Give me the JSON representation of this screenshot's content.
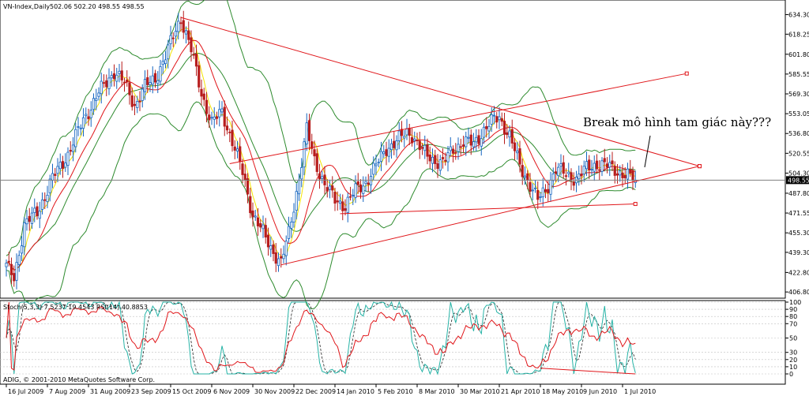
{
  "chart_data": {
    "type": "candlestick",
    "title": "VN-Index,Daily",
    "ohlc_readout": "502.06 502.20 498.55 498.55",
    "last_price_label": "498.55",
    "annotation": "Break mô hình tam giác này???",
    "copyright": "ADIG, © 2001-2010 MetaQuotes Software Corp.",
    "colors": {
      "bull": "#1565c0",
      "bear": "#b71c1c",
      "ma_fast": "#f4e400",
      "ma_slow": "#e0161a",
      "bands": "#2e8b2e",
      "trendline": "#e0161a",
      "stoch_main": "#26b3a6",
      "stoch_signal": "#222222",
      "rsi": "#e0161a"
    },
    "price_axis": {
      "ylim": [
        403,
        645
      ],
      "ticks": [
        "634.30",
        "618.25",
        "601.80",
        "585.55",
        "569.30",
        "553.05",
        "536.80",
        "520.55",
        "504.30",
        "487.80",
        "471.55",
        "455.30",
        "439.30",
        "422.80",
        "406.80"
      ]
    },
    "x_axis": {
      "labels": [
        "16 Jul 2009",
        "7 Aug 2009",
        "31 Aug 2009",
        "23 Sep 2009",
        "15 Oct 2009",
        "6 Nov 2009",
        "30 Nov 2009",
        "22 Dec 2009",
        "14 Jan 2010",
        "5 Feb 2010",
        "8 Mar 2010",
        "30 Mar 2010",
        "21 Apr 2010",
        "18 May 2010",
        "9 Jun 2010",
        "1 Jul 2010"
      ],
      "label_bars": [
        0,
        16,
        32,
        48,
        64,
        80,
        96,
        112,
        128,
        144,
        160,
        176,
        192,
        208,
        224,
        240
      ]
    },
    "price_anchors": [
      [
        0,
        428
      ],
      [
        3,
        418
      ],
      [
        7,
        462
      ],
      [
        12,
        472
      ],
      [
        18,
        500
      ],
      [
        24,
        520
      ],
      [
        30,
        548
      ],
      [
        36,
        570
      ],
      [
        42,
        588
      ],
      [
        46,
        578
      ],
      [
        50,
        560
      ],
      [
        54,
        575
      ],
      [
        58,
        582
      ],
      [
        62,
        600
      ],
      [
        66,
        622
      ],
      [
        68,
        632
      ],
      [
        72,
        605
      ],
      [
        76,
        570
      ],
      [
        80,
        545
      ],
      [
        84,
        555
      ],
      [
        88,
        530
      ],
      [
        92,
        505
      ],
      [
        96,
        470
      ],
      [
        100,
        455
      ],
      [
        104,
        440
      ],
      [
        107,
        430
      ],
      [
        110,
        455
      ],
      [
        114,
        500
      ],
      [
        117,
        540
      ],
      [
        120,
        515
      ],
      [
        124,
        495
      ],
      [
        128,
        482
      ],
      [
        132,
        478
      ],
      [
        136,
        490
      ],
      [
        140,
        497
      ],
      [
        144,
        510
      ],
      [
        148,
        525
      ],
      [
        152,
        530
      ],
      [
        156,
        538
      ],
      [
        158,
        536
      ],
      [
        162,
        522
      ],
      [
        166,
        516
      ],
      [
        170,
        512
      ],
      [
        174,
        524
      ],
      [
        178,
        530
      ],
      [
        182,
        528
      ],
      [
        186,
        540
      ],
      [
        190,
        548
      ],
      [
        192,
        550
      ],
      [
        196,
        535
      ],
      [
        200,
        510
      ],
      [
        204,
        495
      ],
      [
        207,
        482
      ],
      [
        210,
        490
      ],
      [
        214,
        508
      ],
      [
        218,
        503
      ],
      [
        222,
        500
      ],
      [
        226,
        508
      ],
      [
        230,
        512
      ],
      [
        234,
        510
      ],
      [
        238,
        506
      ],
      [
        242,
        502
      ],
      [
        245,
        498.55
      ]
    ],
    "trendlines": [
      {
        "name": "upper",
        "from": [
          68,
          632
        ],
        "to": [
          270,
          510
        ]
      },
      {
        "name": "lower",
        "from": [
          107,
          429
        ],
        "to": [
          270,
          510
        ]
      },
      {
        "name": "channel-top",
        "from": [
          87,
          512
        ],
        "to": [
          265,
          586
        ]
      },
      {
        "name": "base",
        "from": [
          130,
          471
        ],
        "to": [
          245,
          479
        ]
      }
    ],
    "indicator": {
      "label": "Stoch(5,3,3) 7.5237 19.4543  RSI(14) 40.8853",
      "ticks": [
        "100",
        "90",
        "80",
        "70",
        "50",
        "30",
        "20",
        "10",
        "0"
      ],
      "ylim": [
        0,
        100
      ]
    }
  }
}
